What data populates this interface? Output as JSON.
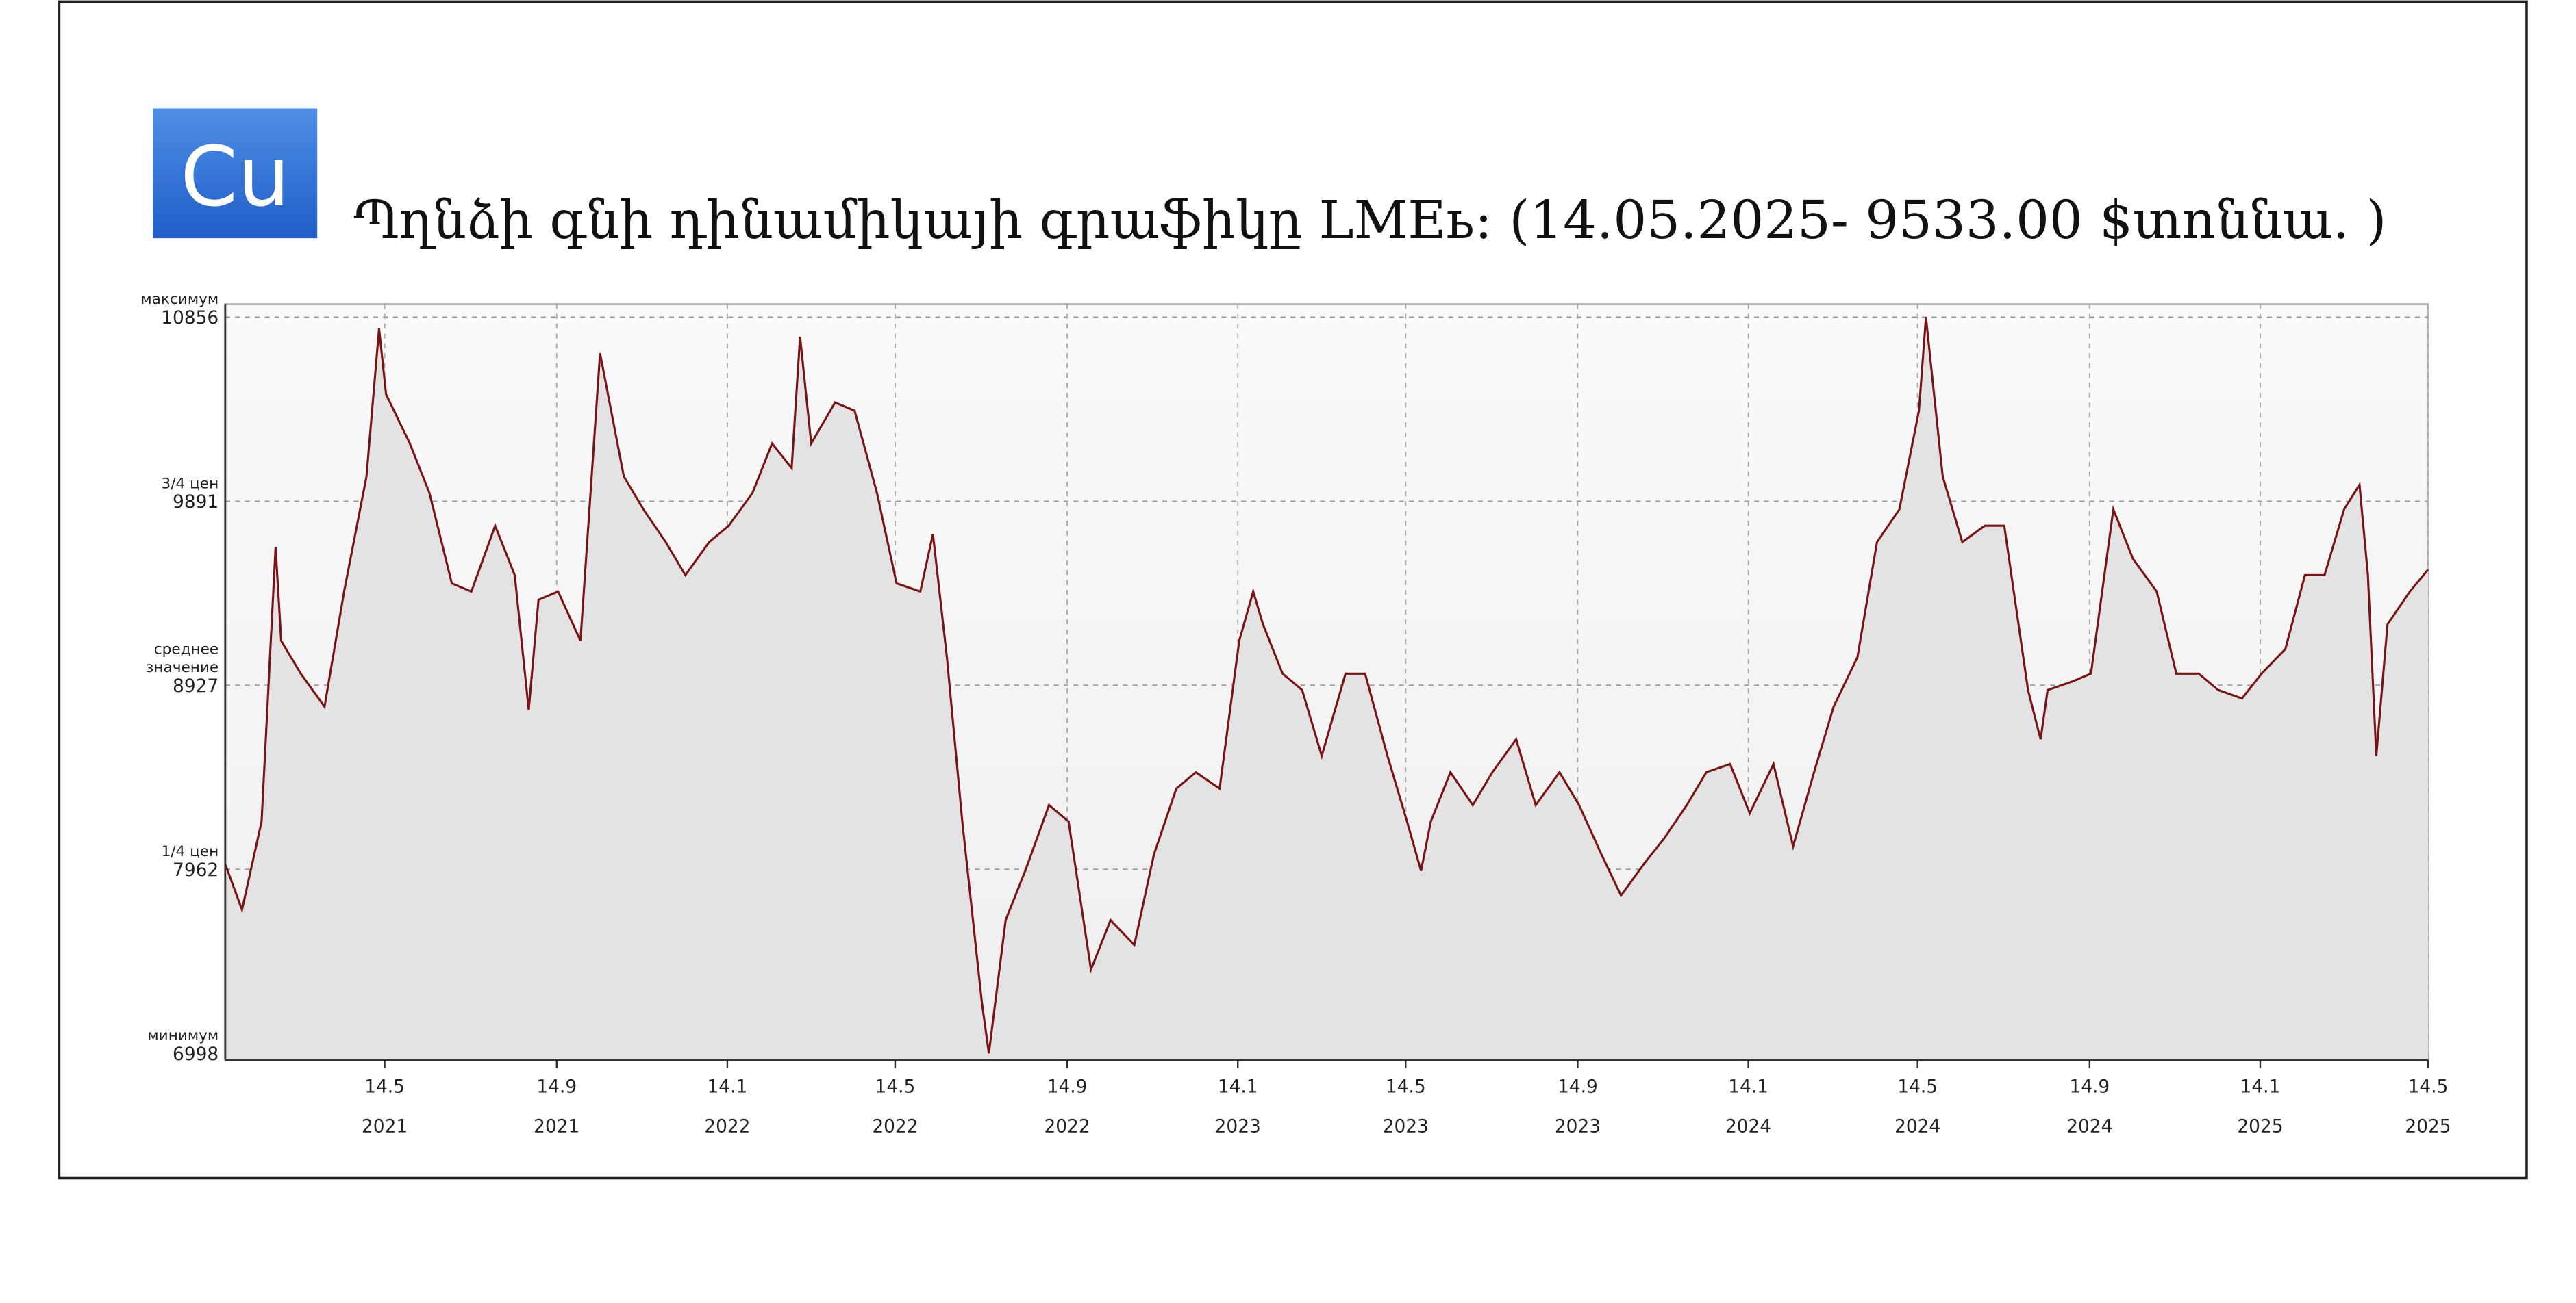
{
  "chart_data": {
    "type": "line",
    "icon_label": "Cu",
    "title": "Պղնձի գնի դինամիկայի գրաֆիկը LMEь: (14.05.2025- 9533.00 $տոննա. )",
    "color": "#7a1414",
    "area_color": "#e3e3e3",
    "grid": true,
    "x": [
      "2021-01-20",
      "2021-02-01",
      "2021-02-15",
      "2021-02-25",
      "2021-03-01",
      "2021-03-15",
      "2021-04-01",
      "2021-04-15",
      "2021-05-01",
      "2021-05-10",
      "2021-05-15",
      "2021-06-01",
      "2021-06-15",
      "2021-07-01",
      "2021-07-15",
      "2021-08-01",
      "2021-08-15",
      "2021-08-25",
      "2021-09-01",
      "2021-09-15",
      "2021-10-01",
      "2021-10-15",
      "2021-11-01",
      "2021-11-15",
      "2021-12-01",
      "2021-12-15",
      "2022-01-01",
      "2022-01-15",
      "2022-02-01",
      "2022-02-15",
      "2022-03-01",
      "2022-03-07",
      "2022-03-15",
      "2022-04-01",
      "2022-04-15",
      "2022-05-01",
      "2022-05-15",
      "2022-06-01",
      "2022-06-10",
      "2022-06-20",
      "2022-07-01",
      "2022-07-15",
      "2022-07-20",
      "2022-08-01",
      "2022-08-15",
      "2022-09-01",
      "2022-09-15",
      "2022-10-01",
      "2022-10-15",
      "2022-11-01",
      "2022-11-15",
      "2022-12-01",
      "2022-12-15",
      "2023-01-01",
      "2023-01-15",
      "2023-01-25",
      "2023-02-01",
      "2023-02-15",
      "2023-03-01",
      "2023-03-15",
      "2023-04-01",
      "2023-04-15",
      "2023-05-01",
      "2023-05-15",
      "2023-05-25",
      "2023-06-01",
      "2023-06-15",
      "2023-07-01",
      "2023-07-15",
      "2023-08-01",
      "2023-08-15",
      "2023-09-01",
      "2023-09-15",
      "2023-10-01",
      "2023-10-15",
      "2023-11-01",
      "2023-11-15",
      "2023-12-01",
      "2023-12-15",
      "2024-01-01",
      "2024-01-15",
      "2024-02-01",
      "2024-02-15",
      "2024-03-01",
      "2024-03-15",
      "2024-04-01",
      "2024-04-15",
      "2024-05-01",
      "2024-05-15",
      "2024-05-20",
      "2024-06-01",
      "2024-06-15",
      "2024-07-01",
      "2024-07-15",
      "2024-08-01",
      "2024-08-10",
      "2024-08-15",
      "2024-09-01",
      "2024-09-15",
      "2024-10-01",
      "2024-10-15",
      "2024-11-01",
      "2024-11-15",
      "2024-12-01",
      "2024-12-15",
      "2025-01-01",
      "2025-01-15",
      "2025-02-01",
      "2025-02-15",
      "2025-03-01",
      "2025-03-15",
      "2025-03-26",
      "2025-04-01",
      "2025-04-07",
      "2025-04-15",
      "2025-05-01",
      "2025-05-14"
    ],
    "values": [
      7990,
      7750,
      8213,
      9651,
      9160,
      8988,
      8815,
      9418,
      10021,
      10796,
      10452,
      10194,
      9935,
      9461,
      9418,
      9763,
      9504,
      8798,
      9375,
      9418,
      9160,
      10667,
      10021,
      9849,
      9677,
      9504,
      9677,
      9763,
      9935,
      10194,
      10065,
      10753,
      10194,
      10409,
      10366,
      9935,
      9461,
      9418,
      9719,
      9074,
      8213,
      7265,
      6998,
      7696,
      7954,
      8299,
      8213,
      7437,
      7696,
      7566,
      8040,
      8385,
      8471,
      8385,
      9160,
      9418,
      9246,
      8988,
      8902,
      8557,
      8988,
      8988,
      8557,
      8213,
      7954,
      8213,
      8471,
      8299,
      8471,
      8644,
      8299,
      8471,
      8299,
      8040,
      7825,
      7997,
      8126,
      8299,
      8471,
      8514,
      8256,
      8514,
      8083,
      8471,
      8815,
      9074,
      9677,
      9849,
      10366,
      10856,
      10021,
      9677,
      9763,
      9763,
      8902,
      8644,
      8902,
      8945,
      8988,
      9849,
      9590,
      9418,
      8988,
      8988,
      8902,
      8858,
      8988,
      9117,
      9504,
      9504,
      9849,
      9978,
      9504,
      8557,
      9246,
      9418,
      9533
    ],
    "xlim": [
      "2021-01-20",
      "2025-05-14"
    ],
    "xticks": [
      {
        "value": "2021-05-14",
        "label": [
          "14.5",
          "2021"
        ]
      },
      {
        "value": "2021-09-14",
        "label": [
          "14.9",
          "2021"
        ]
      },
      {
        "value": "2022-01-14",
        "label": [
          "14.1",
          "2022"
        ]
      },
      {
        "value": "2022-05-14",
        "label": [
          "14.5",
          "2022"
        ]
      },
      {
        "value": "2022-09-14",
        "label": [
          "14.9",
          "2022"
        ]
      },
      {
        "value": "2023-01-14",
        "label": [
          "14.1",
          "2023"
        ]
      },
      {
        "value": "2023-05-14",
        "label": [
          "14.5",
          "2023"
        ]
      },
      {
        "value": "2023-09-14",
        "label": [
          "14.9",
          "2023"
        ]
      },
      {
        "value": "2024-01-14",
        "label": [
          "14.1",
          "2024"
        ]
      },
      {
        "value": "2024-05-14",
        "label": [
          "14.5",
          "2024"
        ]
      },
      {
        "value": "2024-09-14",
        "label": [
          "14.9",
          "2024"
        ]
      },
      {
        "value": "2025-01-14",
        "label": [
          "14.1",
          "2025"
        ]
      },
      {
        "value": "2025-05-14",
        "label": [
          "14.5",
          "2025"
        ]
      }
    ],
    "ylim": [
      6964,
      10925
    ],
    "yticks": [
      {
        "value": 6998,
        "label": "6998",
        "caption": [
          "минимум"
        ]
      },
      {
        "value": 7962,
        "label": "7962",
        "caption": [
          "1/4 цен"
        ]
      },
      {
        "value": 8927,
        "label": "8927",
        "caption": [
          "среднее",
          "значение"
        ]
      },
      {
        "value": 9891,
        "label": "9891",
        "caption": [
          "3/4 цен"
        ]
      },
      {
        "value": 10856,
        "label": "10856",
        "caption": [
          "максимум"
        ]
      }
    ]
  }
}
